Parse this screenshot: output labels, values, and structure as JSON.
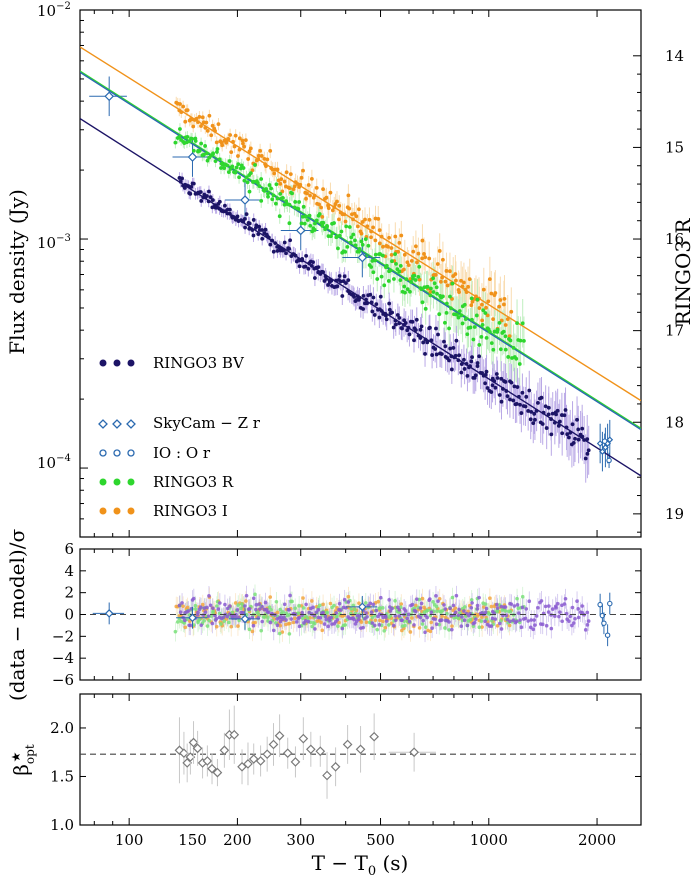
{
  "colors": {
    "bv": "#1c1466",
    "bv_err": "#b9a8e6",
    "skycam": "#2b6ab0",
    "io": "#2b6ab0",
    "r": "#2ed62e",
    "r_err": "#bfeebf",
    "i": "#f0921a",
    "i_err": "#f9dcb0",
    "beta": "#7a7a7a",
    "beta_err": "#c8c8c8"
  },
  "chart_data": [
    {
      "panel": "light-curve",
      "type": "scatter",
      "xscale": "log",
      "yscale": "log",
      "xlim": [
        73,
        2650
      ],
      "ylim": [
        5e-05,
        0.01
      ],
      "ylabel": "Flux density (Jy)",
      "y_ticks": [
        {
          "value": 0.01,
          "base": "10",
          "exp": "−2"
        },
        {
          "value": 0.001,
          "base": "10",
          "exp": "−3"
        },
        {
          "value": 0.0001,
          "base": "10",
          "exp": "−4"
        }
      ],
      "right_axis": {
        "label": "RINGO3 R",
        "ticks": [
          "14",
          "15",
          "16",
          "17",
          "18",
          "19"
        ],
        "mag_at_1e-3": 16.0,
        "note": "mag = 16.0 - 2.5*log10(F/1e-3)"
      },
      "series": [
        {
          "name": "RINGO3 BV",
          "marker": "dot",
          "model": {
            "amp_at_100s": 0.00245,
            "slope": -1.0
          },
          "t_range": [
            138,
            1900
          ]
        },
        {
          "name": "SkyCam − Z r",
          "marker": "diamond",
          "points": [
            [
              88,
              0.0042
            ],
            [
              150,
              0.00228
            ],
            [
              210,
              0.00148
            ],
            [
              300,
              0.00109
            ],
            [
              445,
              0.00083
            ],
            [
              2040,
              0.000128
            ],
            [
              2070,
              0.000118
            ],
            [
              2110,
              0.000123
            ],
            [
              2140,
              0.000128
            ],
            [
              2170,
              0.000133
            ]
          ]
        },
        {
          "name": "IO : O r",
          "marker": "circle",
          "points": [
            [
              2100,
              0.000131
            ],
            [
              2160,
              0.000108
            ]
          ]
        },
        {
          "name": "RINGO3 R",
          "marker": "dot",
          "model": {
            "amp_at_100s": 0.00395,
            "slope": -1.0
          },
          "t_range": [
            135,
            1250
          ]
        },
        {
          "name": "RINGO3 I",
          "marker": "dot",
          "model": {
            "amp_at_100s": 0.00505,
            "slope": -0.99
          },
          "t_range": [
            135,
            1150
          ]
        }
      ]
    },
    {
      "panel": "residuals",
      "type": "scatter",
      "xscale": "log",
      "ylim": [
        -6,
        6
      ],
      "ylabel": "(data − model)/σ",
      "y_ticks": [
        "6",
        "4",
        "2",
        "0",
        "−2",
        "−4",
        "−6"
      ],
      "reference_line": 0,
      "diamond_points": [
        [
          88,
          0.1
        ],
        [
          150,
          -0.3
        ],
        [
          210,
          -0.4
        ],
        [
          445,
          0.7
        ]
      ],
      "io_points": [
        [
          2040,
          0.9
        ],
        [
          2070,
          -0.1
        ],
        [
          2090,
          -0.8
        ],
        [
          2140,
          -1.9
        ],
        [
          2170,
          1.0
        ]
      ]
    },
    {
      "panel": "beta",
      "type": "scatter",
      "xscale": "log",
      "ylim": [
        1.0,
        2.35
      ],
      "ylabel": "β★opt",
      "y_ticks": [
        "1.0",
        "1.5",
        "2.0"
      ],
      "reference_line": 1.73,
      "points": [
        [
          138,
          1.77,
          0.34
        ],
        [
          142,
          1.74,
          0.22
        ],
        [
          145,
          1.64,
          0.2
        ],
        [
          148,
          1.7,
          0.18
        ],
        [
          151,
          1.85,
          0.22
        ],
        [
          155,
          1.79,
          0.18
        ],
        [
          160,
          1.64,
          0.16
        ],
        [
          165,
          1.66,
          0.16
        ],
        [
          170,
          1.58,
          0.16
        ],
        [
          176,
          1.54,
          0.14
        ],
        [
          184,
          1.77,
          0.18
        ],
        [
          190,
          1.93,
          0.26
        ],
        [
          196,
          1.93,
          0.3
        ],
        [
          206,
          1.6,
          0.18
        ],
        [
          214,
          1.63,
          0.22
        ],
        [
          222,
          1.68,
          0.16
        ],
        [
          232,
          1.66,
          0.16
        ],
        [
          242,
          1.73,
          0.18
        ],
        [
          252,
          1.83,
          0.22
        ],
        [
          262,
          1.92,
          0.22
        ],
        [
          276,
          1.74,
          0.16
        ],
        [
          290,
          1.65,
          0.16
        ],
        [
          305,
          1.89,
          0.22
        ],
        [
          320,
          1.78,
          0.18
        ],
        [
          340,
          1.76,
          0.16
        ],
        [
          355,
          1.51,
          0.24
        ],
        [
          375,
          1.6,
          0.2
        ],
        [
          405,
          1.83,
          0.2
        ],
        [
          440,
          1.78,
          0.24
        ],
        [
          480,
          1.91,
          0.24
        ],
        [
          620,
          1.75,
          0.2
        ]
      ]
    }
  ],
  "x_axis": {
    "label_base": "T − T",
    "label_sub": "0",
    "label_unit": " (s)",
    "ticks": [
      {
        "value": 100,
        "label": "100"
      },
      {
        "value": 150,
        "label": "150"
      },
      {
        "value": 200,
        "label": "200"
      },
      {
        "value": 300,
        "label": "300"
      },
      {
        "value": 500,
        "label": "500"
      },
      {
        "value": 1000,
        "label": "1000"
      },
      {
        "value": 2000,
        "label": "2000"
      }
    ]
  }
}
